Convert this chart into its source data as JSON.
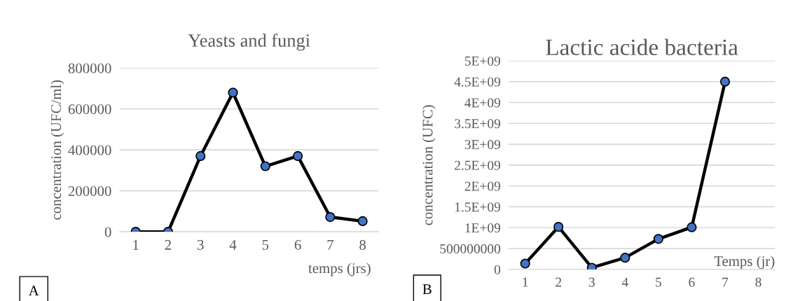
{
  "chart_data": [
    {
      "type": "line",
      "title": "Yeasts and fungi",
      "ylabel": "concentration (UFC/ml)",
      "xlabel": "temps (jrs)",
      "categories": [
        "1",
        "2",
        "3",
        "4",
        "5",
        "6",
        "7",
        "8"
      ],
      "series": [
        {
          "color": "#000000",
          "colors": [
            "#4472c4",
            "#4472c4",
            "#4472c4",
            "#4472c4",
            "#4472c4",
            "#4472c4",
            "#4472c4",
            "#4472c4"
          ],
          "values": [
            0,
            0,
            370000,
            680000,
            320000,
            370000,
            72000,
            52000
          ]
        }
      ],
      "ylim": [
        0,
        800000
      ],
      "yticks": [
        0,
        200000,
        400000,
        600000,
        800000
      ],
      "grid": "y",
      "marker": "circle",
      "line_style": "solid",
      "legend": false,
      "annotations": [
        "A"
      ]
    },
    {
      "type": "line",
      "title": "Lactic acide bacteria",
      "ylabel": "concentration (UFC)",
      "xlabel": "Temps (jr)",
      "categories": [
        "1",
        "2",
        "3",
        "4",
        "5",
        "6",
        "7",
        "8"
      ],
      "series": [
        {
          "color": "#000000",
          "colors": [
            "#4472c4",
            "#4472c4",
            "#4472c4",
            "#4472c4",
            "#4472c4",
            "#4472c4",
            "#4472c4",
            "#4472c4"
          ],
          "values": [
            140000000,
            1020000000,
            40000000,
            280000000,
            730000000,
            1010000000,
            4500000000,
            null
          ]
        }
      ],
      "ylim": [
        0,
        5000000000
      ],
      "yticks": [
        0,
        500000000,
        {
          "value": 1000000000,
          "label": "1E+09"
        },
        {
          "value": 1500000000,
          "label": "1.5E+09"
        },
        {
          "value": 2000000000,
          "label": "2E+09"
        },
        {
          "value": 2500000000,
          "label": "2.5E+09"
        },
        {
          "value": 3000000000,
          "label": "3E+09"
        },
        {
          "value": 3500000000,
          "label": "3.5E+09"
        },
        {
          "value": 4000000000,
          "label": "4E+09"
        },
        {
          "value": 4500000000,
          "label": "4.5E+09"
        },
        {
          "value": 5000000000,
          "label": "5E+09"
        }
      ],
      "grid": "y",
      "marker": "circle",
      "line_style": "solid",
      "legend": false,
      "annotations": [
        "B"
      ]
    }
  ]
}
